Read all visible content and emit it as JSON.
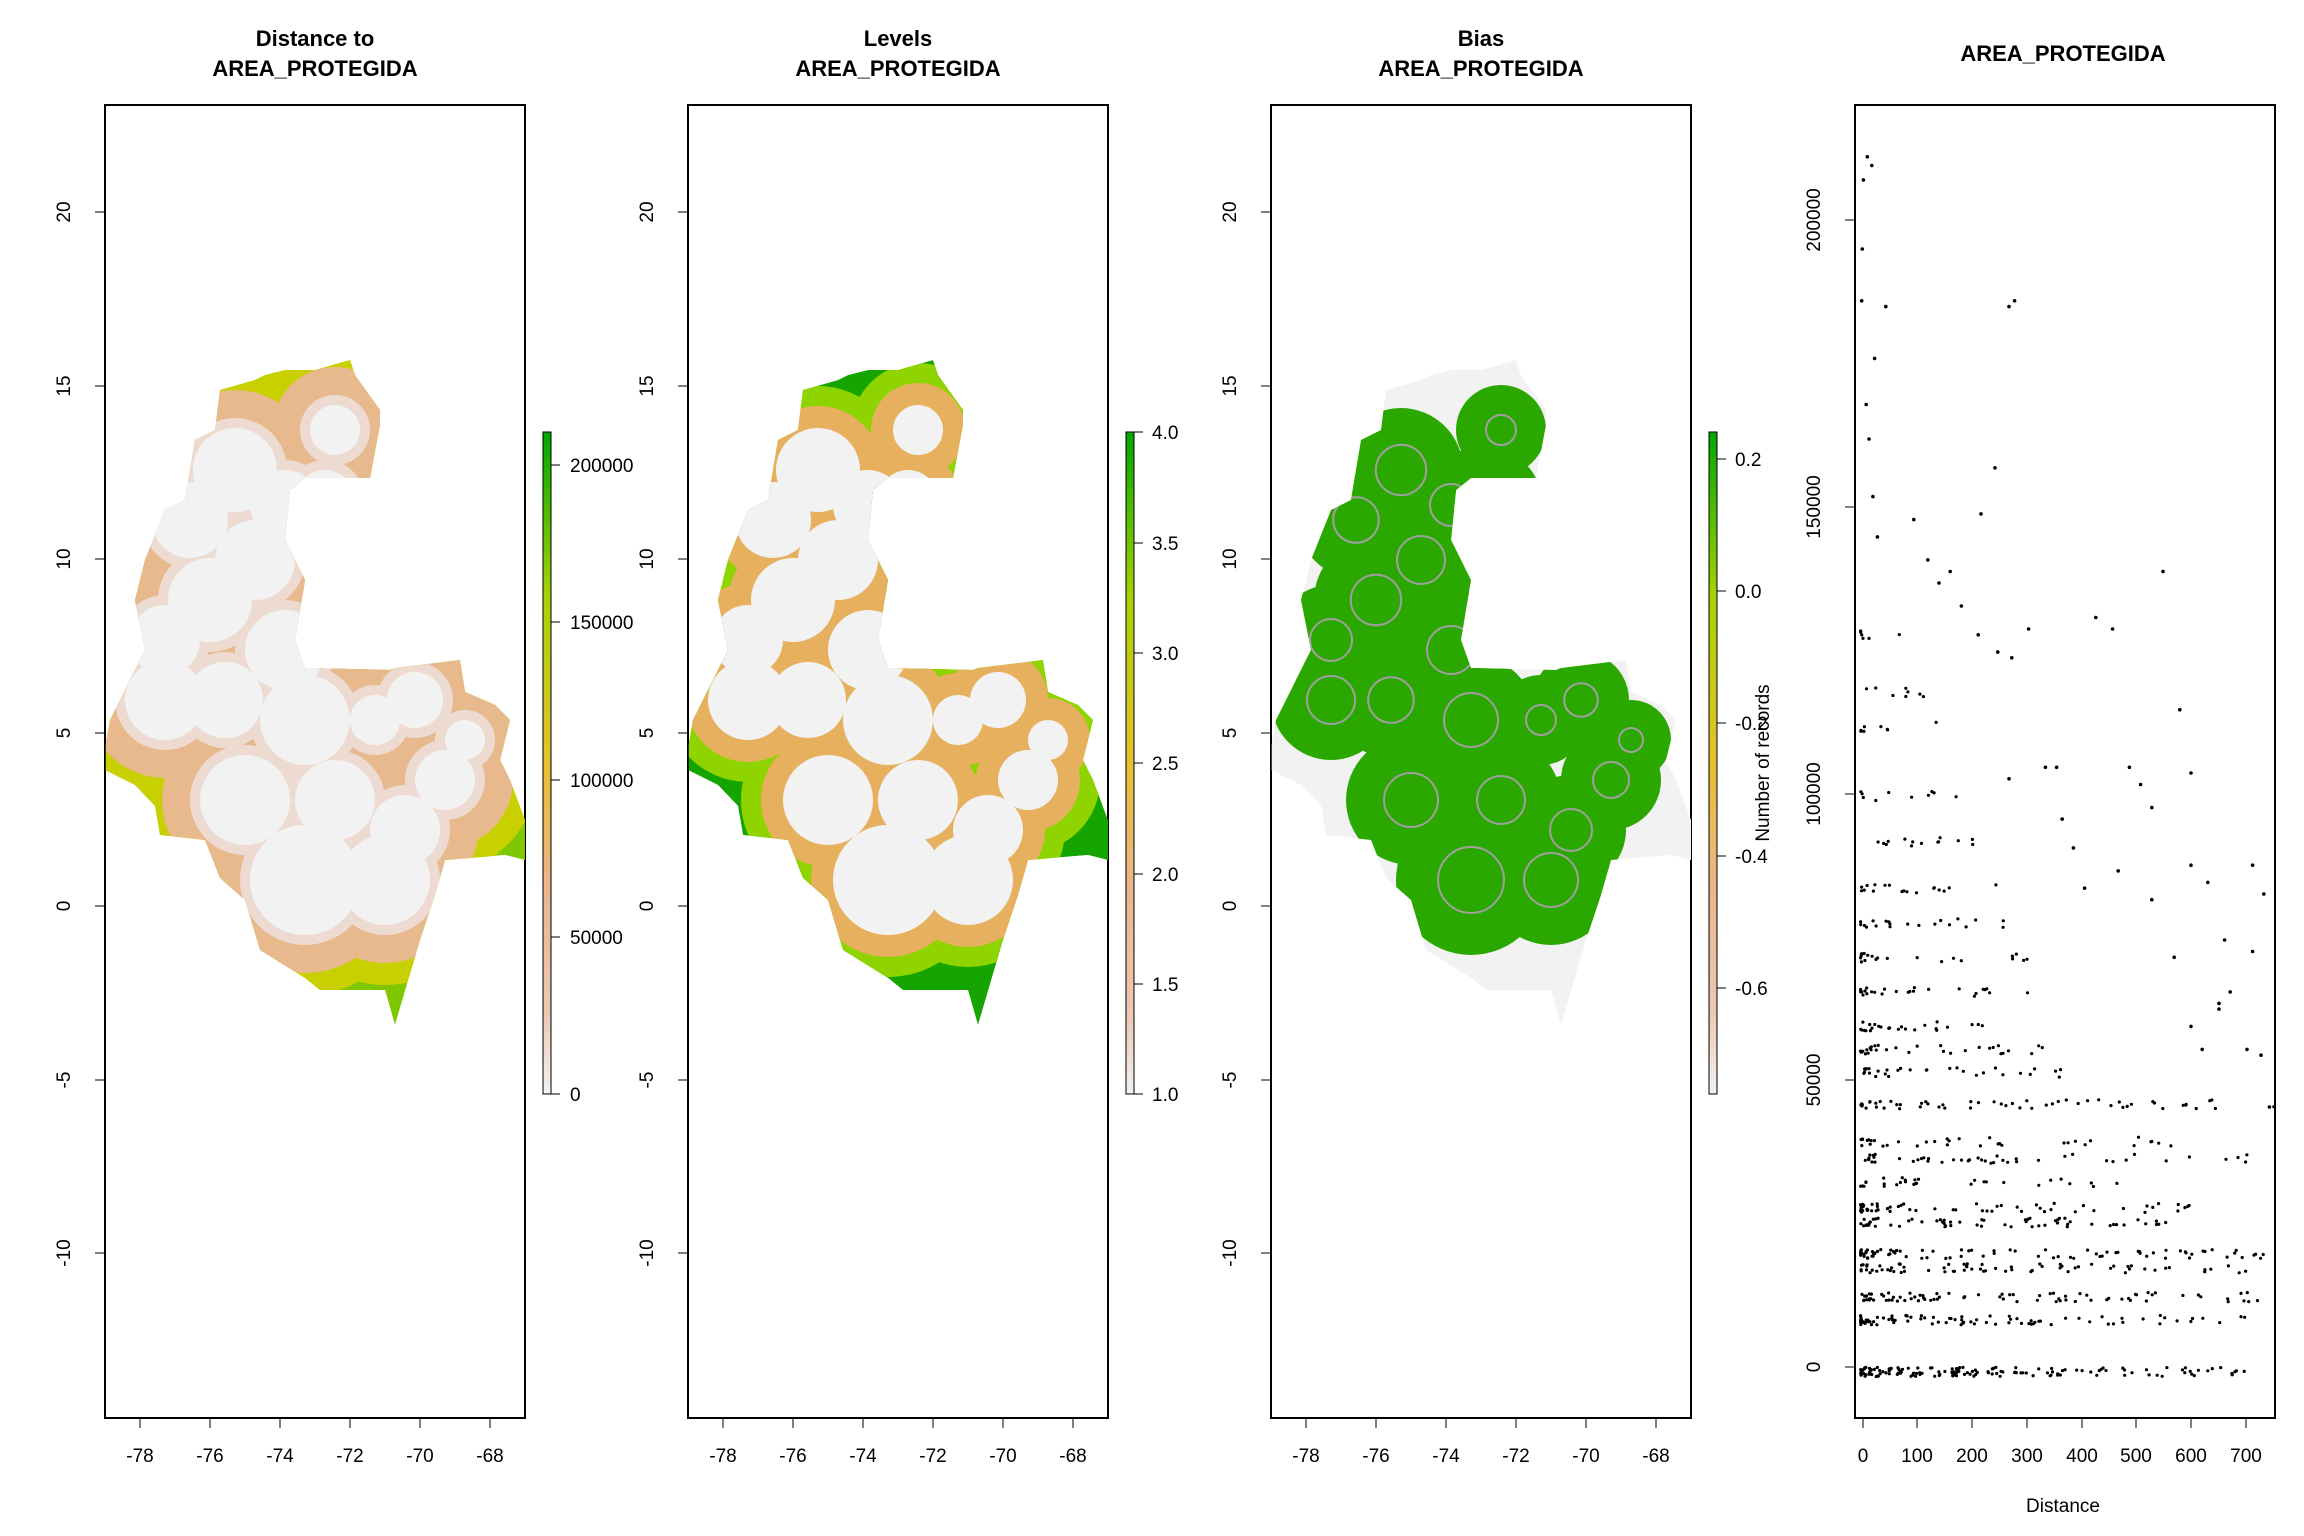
{
  "figure": {
    "panels": [
      {
        "title_line1": "Distance to",
        "title_line2": "AREA_PROTEGIDA",
        "x_ticks": [
          "-78",
          "-76",
          "-74",
          "-72",
          "-70",
          "-68"
        ],
        "y_ticks": [
          "-10",
          "-5",
          "0",
          "5",
          "10",
          "15",
          "20"
        ],
        "legend_ticks": [
          "0",
          "50000",
          "100000",
          "150000",
          "200000"
        ],
        "legend_colors": [
          "#f2f2f2",
          "#eab589",
          "#e6c12e",
          "#a8d200",
          "#00a600"
        ]
      },
      {
        "title_line1": "Levels",
        "title_line2": "AREA_PROTEGIDA",
        "x_ticks": [
          "-78",
          "-76",
          "-74",
          "-72",
          "-70",
          "-68"
        ],
        "y_ticks": [
          "-10",
          "-5",
          "0",
          "5",
          "10",
          "15",
          "20"
        ],
        "legend_ticks": [
          "1.0",
          "1.5",
          "2.0",
          "2.5",
          "3.0",
          "3.5",
          "4.0"
        ],
        "legend_colors": [
          "#f2f2f2",
          "#eab589",
          "#e6c12e",
          "#a8d200",
          "#00a600"
        ],
        "class_colors": [
          "#f2f2f2",
          "#e6b05f",
          "#8fd400",
          "#16a400"
        ]
      },
      {
        "title_line1": "Bias",
        "title_line2": "AREA_PROTEGIDA",
        "x_ticks": [
          "-78",
          "-76",
          "-74",
          "-72",
          "-70",
          "-68"
        ],
        "y_ticks": [
          "-10",
          "-5",
          "0",
          "5",
          "10",
          "15",
          "20"
        ],
        "legend_ticks": [
          "0.2",
          "0.0",
          "-0.2",
          "-0.4",
          "-0.6"
        ],
        "legend_axis_label": "Number of records",
        "legend_colors": [
          "#f2f2f2",
          "#eab589",
          "#e6c12e",
          "#a8d200",
          "#00a600"
        ],
        "fill_color": "#2aa800",
        "outline_color": "#a0a0a0"
      }
    ],
    "scatter_panel": {
      "title": "AREA_PROTEGIDA",
      "x_ticks": [
        "0",
        "100",
        "200",
        "300",
        "400",
        "500",
        "600",
        "700"
      ],
      "y_ticks": [
        "0",
        "50000",
        "100000",
        "150000",
        "200000"
      ],
      "xlabel": "Distance"
    }
  },
  "chart_data": [
    {
      "type": "heatmap",
      "title": "Distance to AREA_PROTEGIDA",
      "xlim": [
        -79,
        -67
      ],
      "ylim": [
        -15,
        23
      ],
      "colorbar_range": [
        0,
        210000
      ],
      "colorbar_ticks": [
        0,
        50000,
        100000,
        150000,
        200000
      ]
    },
    {
      "type": "heatmap",
      "title": "Levels AREA_PROTEGIDA",
      "xlim": [
        -79,
        -67
      ],
      "ylim": [
        -15,
        23
      ],
      "colorbar_range": [
        1.0,
        4.0
      ],
      "colorbar_ticks": [
        1.0,
        1.5,
        2.0,
        2.5,
        3.0,
        3.5,
        4.0
      ]
    },
    {
      "type": "heatmap",
      "title": "Bias AREA_PROTEGIDA",
      "xlim": [
        -79,
        -67
      ],
      "ylim": [
        -15,
        23
      ],
      "colorbar_range": [
        -0.75,
        0.25
      ],
      "colorbar_ticks": [
        0.2,
        0.0,
        -0.2,
        -0.4,
        -0.6
      ],
      "colorbar_label": "Number of records"
    },
    {
      "type": "scatter",
      "title": "AREA_PROTEGIDA",
      "xlabel": "Distance",
      "ylabel": "",
      "xlim": [
        -10,
        740
      ],
      "ylim": [
        -8000,
        220000
      ],
      "rows": [
        {
          "y": 0,
          "xmax": 720,
          "n": 150
        },
        {
          "y": 9000,
          "xmax": 730,
          "n": 90
        },
        {
          "y": 13000,
          "xmax": 720,
          "n": 80
        },
        {
          "y": 18000,
          "xmax": 720,
          "n": 70
        },
        {
          "y": 20500,
          "xmax": 730,
          "n": 80
        },
        {
          "y": 26000,
          "xmax": 560,
          "n": 60
        },
        {
          "y": 28500,
          "xmax": 600,
          "n": 60
        },
        {
          "y": 33000,
          "xmax": 470,
          "n": 30
        },
        {
          "y": 37000,
          "xmax": 700,
          "n": 45
        },
        {
          "y": 40000,
          "xmax": 560,
          "n": 35
        },
        {
          "y": 46500,
          "xmax": 740,
          "n": 55
        },
        {
          "y": 52000,
          "xmax": 400,
          "n": 30
        },
        {
          "y": 56000,
          "xmax": 350,
          "n": 30
        },
        {
          "y": 60000,
          "xmax": 280,
          "n": 25
        },
        {
          "y": 66000,
          "xmax": 330,
          "n": 25
        },
        {
          "y": 72000,
          "xmax": 300,
          "n": 20
        },
        {
          "y": 78000,
          "xmax": 260,
          "n": 20
        },
        {
          "y": 84000,
          "xmax": 250,
          "n": 18
        },
        {
          "y": 92000,
          "xmax": 220,
          "n": 14
        },
        {
          "y": 100000,
          "xmax": 180,
          "n": 10
        },
        {
          "y": 112000,
          "xmax": 160,
          "n": 8
        },
        {
          "y": 118000,
          "xmax": 120,
          "n": 8
        },
        {
          "y": 128000,
          "xmax": 80,
          "n": 6
        }
      ],
      "scattered_points": [
        [
          5,
          207000
        ],
        [
          12,
          211000
        ],
        [
          20,
          209500
        ],
        [
          3,
          195000
        ],
        [
          2,
          186000
        ],
        [
          25,
          176000
        ],
        [
          45,
          185000
        ],
        [
          265,
          185000
        ],
        [
          275,
          186000
        ],
        [
          240,
          157000
        ],
        [
          215,
          149000
        ],
        [
          95,
          148000
        ],
        [
          10,
          168000
        ],
        [
          15,
          162000
        ],
        [
          22,
          152000
        ],
        [
          30,
          145000
        ],
        [
          120,
          141000
        ],
        [
          140,
          137000
        ],
        [
          160,
          139000
        ],
        [
          180,
          133000
        ],
        [
          420,
          131000
        ],
        [
          450,
          129000
        ],
        [
          270,
          124000
        ],
        [
          210,
          128000
        ],
        [
          245,
          125000
        ],
        [
          300,
          129000
        ],
        [
          540,
          139000
        ],
        [
          570,
          115000
        ],
        [
          480,
          105000
        ],
        [
          500,
          102000
        ],
        [
          590,
          104000
        ],
        [
          520,
          98000
        ],
        [
          330,
          105000
        ],
        [
          350,
          105000
        ],
        [
          265,
          103000
        ],
        [
          360,
          96000
        ],
        [
          380,
          91000
        ],
        [
          400,
          84000
        ],
        [
          460,
          87000
        ],
        [
          590,
          88000
        ],
        [
          620,
          85000
        ],
        [
          700,
          88000
        ],
        [
          720,
          83000
        ],
        [
          650,
          75000
        ],
        [
          700,
          73000
        ],
        [
          660,
          66000
        ],
        [
          640,
          64000
        ],
        [
          610,
          56000
        ],
        [
          590,
          60000
        ],
        [
          690,
          56000
        ],
        [
          715,
          55000
        ],
        [
          730,
          46000
        ],
        [
          640,
          63000
        ],
        [
          560,
          72000
        ],
        [
          520,
          82000
        ]
      ]
    }
  ]
}
